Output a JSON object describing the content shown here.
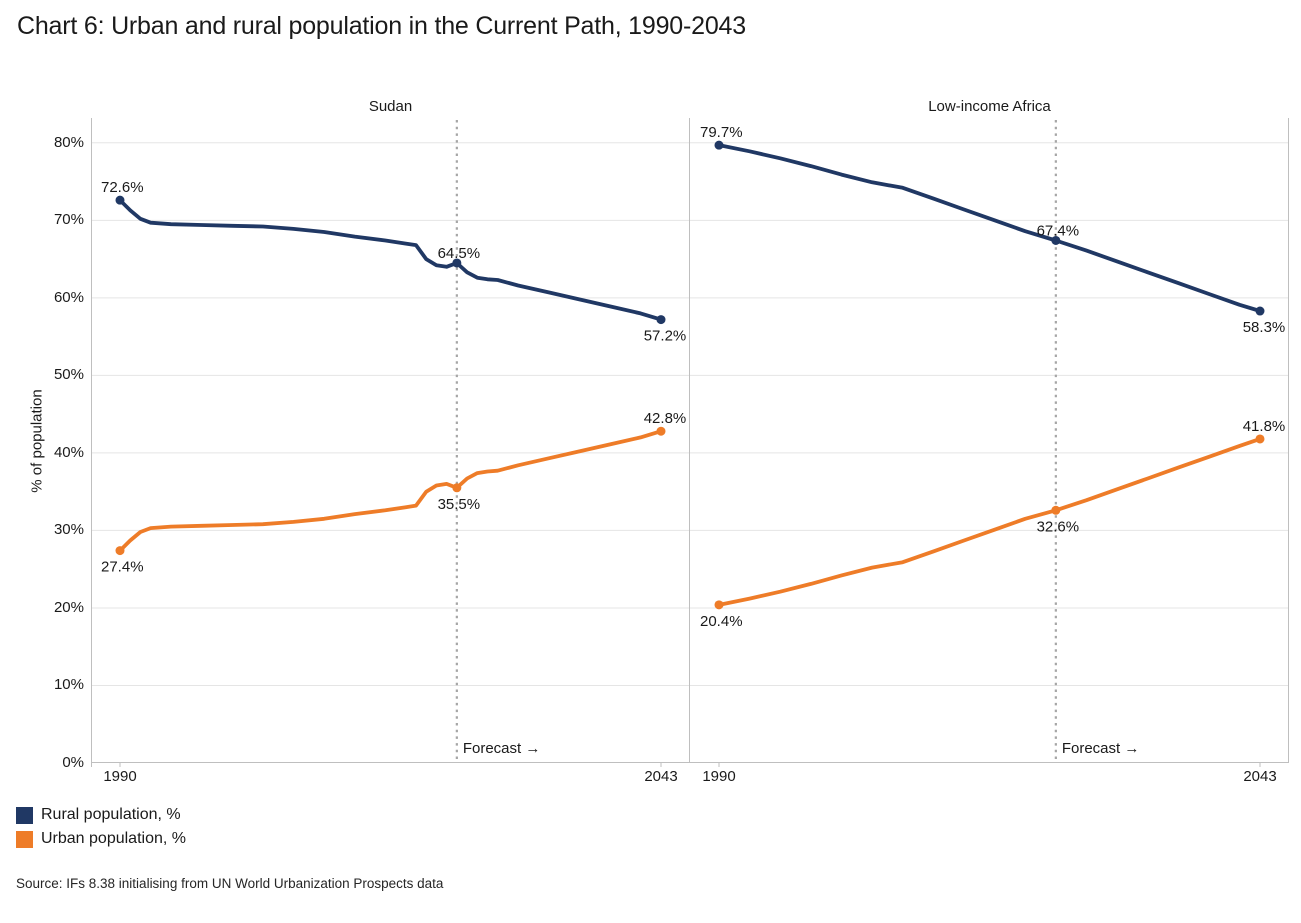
{
  "title": "Chart 6: Urban and rural population in the Current Path, 1990-2043",
  "source": "Source: IFs 8.38 initialising from UN World Urbanization Prospects data",
  "colors": {
    "rural": "#203864",
    "urban": "#EE7C28",
    "grid": "#E5E5E5",
    "axis": "#BFBFBF",
    "forecast_line": "#A6A6A6",
    "text": "#1A1A1A"
  },
  "legend": [
    {
      "key": "rural",
      "label": "Rural population, %"
    },
    {
      "key": "urban",
      "label": "Urban population, %"
    }
  ],
  "chart_data": {
    "type": "line",
    "title": "Chart 6: Urban and rural population in the Current Path, 1990-2043",
    "xlabel": "",
    "ylabel": "% of population",
    "ylim": [
      0,
      83.2
    ],
    "yticks": [
      0,
      10,
      20,
      30,
      40,
      50,
      60,
      70,
      80
    ],
    "ytick_labels": [
      "0%",
      "10%",
      "20%",
      "30%",
      "40%",
      "50%",
      "60%",
      "70%",
      "80%"
    ],
    "x_range": [
      1990,
      2043
    ],
    "forecast_year": 2023,
    "forecast_label": "Forecast →",
    "grid": true,
    "legend_position": "bottom-left",
    "panels": [
      {
        "title": "Sudan",
        "x_tick_labels": [
          "1990",
          "2043"
        ],
        "series": [
          {
            "key": "rural",
            "name": "Rural population, %",
            "points": [
              [
                1990,
                72.6
              ],
              [
                1991,
                71.3
              ],
              [
                1992,
                70.2
              ],
              [
                1993,
                69.7
              ],
              [
                1995,
                69.5
              ],
              [
                1998,
                69.4
              ],
              [
                2001,
                69.3
              ],
              [
                2004,
                69.2
              ],
              [
                2007,
                68.9
              ],
              [
                2010,
                68.5
              ],
              [
                2013,
                67.9
              ],
              [
                2016,
                67.4
              ],
              [
                2018,
                67.0
              ],
              [
                2019,
                66.8
              ],
              [
                2020,
                65.0
              ],
              [
                2021,
                64.2
              ],
              [
                2022,
                64.0
              ],
              [
                2023,
                64.5
              ],
              [
                2024,
                63.3
              ],
              [
                2025,
                62.6
              ],
              [
                2026,
                62.4
              ],
              [
                2027,
                62.3
              ],
              [
                2029,
                61.6
              ],
              [
                2032,
                60.7
              ],
              [
                2035,
                59.8
              ],
              [
                2038,
                58.9
              ],
              [
                2041,
                58.0
              ],
              [
                2043,
                57.2
              ]
            ],
            "labels": [
              {
                "year": 1990,
                "value": 72.6,
                "text": "72.6%",
                "pos": "above"
              },
              {
                "year": 2023,
                "value": 64.5,
                "text": "64.5%",
                "pos": "above"
              },
              {
                "year": 2043,
                "value": 57.2,
                "text": "57.2%",
                "pos": "below"
              }
            ]
          },
          {
            "key": "urban",
            "name": "Urban population, %",
            "points": [
              [
                1990,
                27.4
              ],
              [
                1991,
                28.7
              ],
              [
                1992,
                29.8
              ],
              [
                1993,
                30.3
              ],
              [
                1995,
                30.5
              ],
              [
                1998,
                30.6
              ],
              [
                2001,
                30.7
              ],
              [
                2004,
                30.8
              ],
              [
                2007,
                31.1
              ],
              [
                2010,
                31.5
              ],
              [
                2013,
                32.1
              ],
              [
                2016,
                32.6
              ],
              [
                2018,
                33.0
              ],
              [
                2019,
                33.2
              ],
              [
                2020,
                35.0
              ],
              [
                2021,
                35.8
              ],
              [
                2022,
                36.0
              ],
              [
                2023,
                35.5
              ],
              [
                2024,
                36.7
              ],
              [
                2025,
                37.4
              ],
              [
                2026,
                37.6
              ],
              [
                2027,
                37.7
              ],
              [
                2029,
                38.4
              ],
              [
                2032,
                39.3
              ],
              [
                2035,
                40.2
              ],
              [
                2038,
                41.1
              ],
              [
                2041,
                42.0
              ],
              [
                2043,
                42.8
              ]
            ],
            "labels": [
              {
                "year": 1990,
                "value": 27.4,
                "text": "27.4%",
                "pos": "below"
              },
              {
                "year": 2023,
                "value": 35.5,
                "text": "35.5%",
                "pos": "below"
              },
              {
                "year": 2043,
                "value": 42.8,
                "text": "42.8%",
                "pos": "above"
              }
            ]
          }
        ]
      },
      {
        "title": "Low-income Africa",
        "x_tick_labels": [
          "1990",
          "2043"
        ],
        "series": [
          {
            "key": "rural",
            "name": "Rural population, %",
            "points": [
              [
                1990,
                79.7
              ],
              [
                1993,
                78.9
              ],
              [
                1996,
                78.0
              ],
              [
                1999,
                77.0
              ],
              [
                2002,
                75.9
              ],
              [
                2005,
                74.9
              ],
              [
                2008,
                74.2
              ],
              [
                2011,
                72.8
              ],
              [
                2014,
                71.4
              ],
              [
                2017,
                70.0
              ],
              [
                2020,
                68.6
              ],
              [
                2023,
                67.4
              ],
              [
                2026,
                66.1
              ],
              [
                2029,
                64.7
              ],
              [
                2032,
                63.3
              ],
              [
                2035,
                61.9
              ],
              [
                2038,
                60.5
              ],
              [
                2041,
                59.1
              ],
              [
                2043,
                58.3
              ]
            ],
            "labels": [
              {
                "year": 1990,
                "value": 79.7,
                "text": "79.7%",
                "pos": "above"
              },
              {
                "year": 2023,
                "value": 67.4,
                "text": "67.4%",
                "pos": "above"
              },
              {
                "year": 2043,
                "value": 58.3,
                "text": "58.3%",
                "pos": "below"
              }
            ]
          },
          {
            "key": "urban",
            "name": "Urban population, %",
            "points": [
              [
                1990,
                20.4
              ],
              [
                1993,
                21.2
              ],
              [
                1996,
                22.1
              ],
              [
                1999,
                23.1
              ],
              [
                2002,
                24.2
              ],
              [
                2005,
                25.2
              ],
              [
                2008,
                25.9
              ],
              [
                2011,
                27.3
              ],
              [
                2014,
                28.7
              ],
              [
                2017,
                30.1
              ],
              [
                2020,
                31.5
              ],
              [
                2023,
                32.6
              ],
              [
                2026,
                33.9
              ],
              [
                2029,
                35.3
              ],
              [
                2032,
                36.7
              ],
              [
                2035,
                38.1
              ],
              [
                2038,
                39.5
              ],
              [
                2041,
                40.9
              ],
              [
                2043,
                41.8
              ]
            ],
            "labels": [
              {
                "year": 1990,
                "value": 20.4,
                "text": "20.4%",
                "pos": "below"
              },
              {
                "year": 2023,
                "value": 32.6,
                "text": "32.6%",
                "pos": "below"
              },
              {
                "year": 2043,
                "value": 41.8,
                "text": "41.8%",
                "pos": "above"
              }
            ]
          }
        ]
      }
    ]
  }
}
